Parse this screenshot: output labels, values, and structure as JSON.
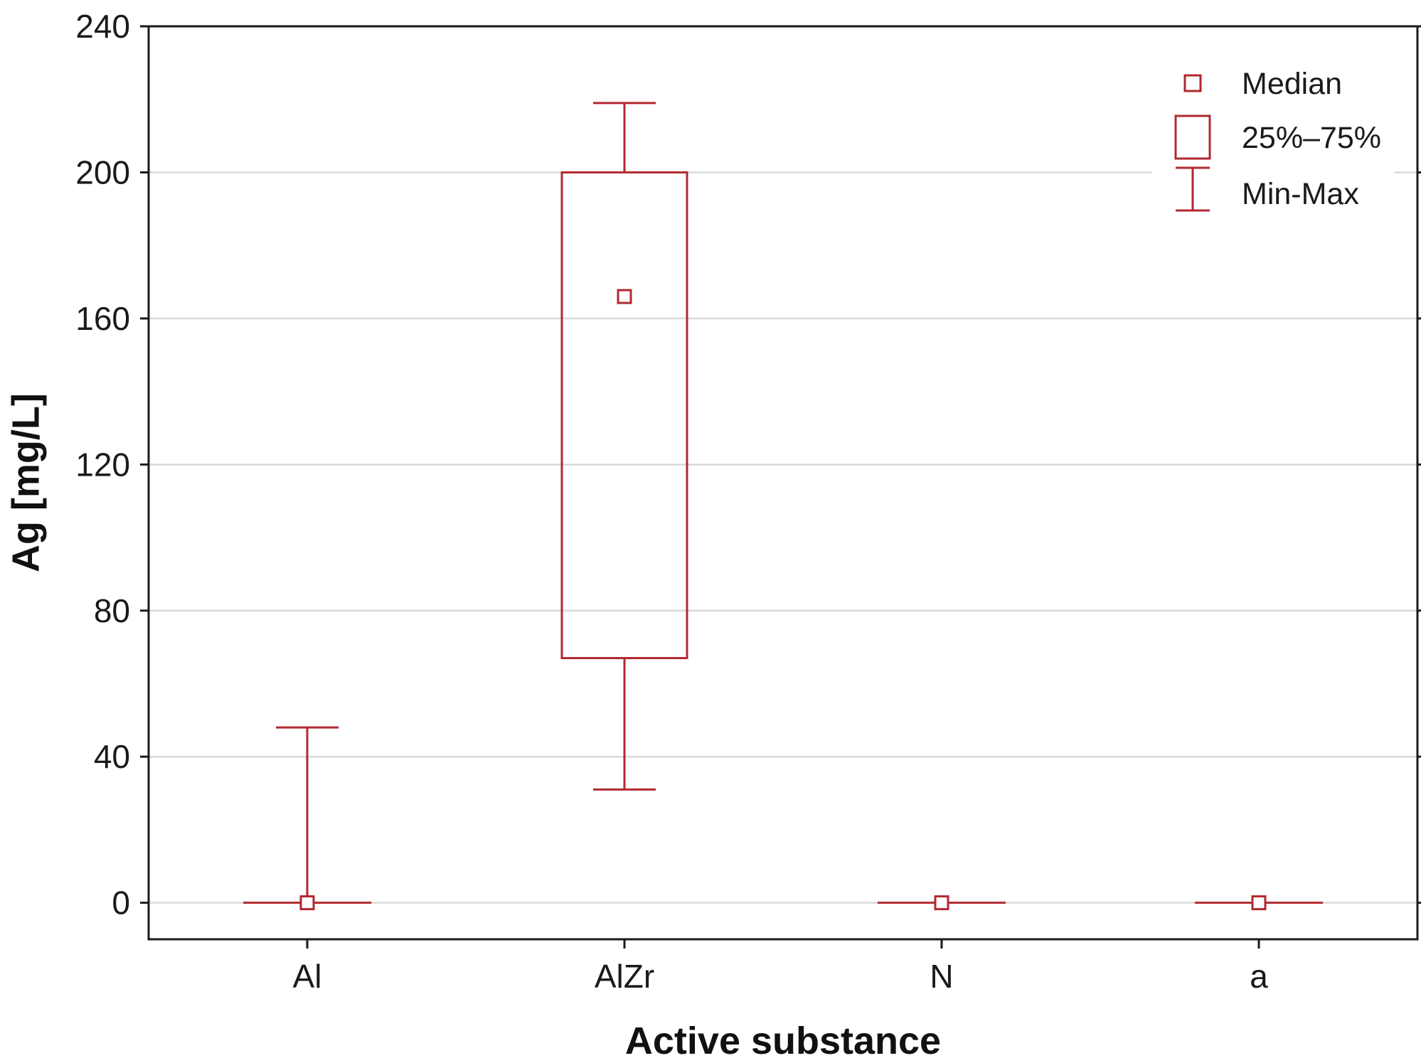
{
  "chart_data": {
    "type": "box",
    "xlabel": "Active substance",
    "ylabel": "Ag [mg/L]",
    "ylim": [
      -10,
      240
    ],
    "yticks": [
      0,
      40,
      80,
      120,
      160,
      200,
      240
    ],
    "grid": true,
    "categories": [
      "Al",
      "AlZr",
      "N",
      "a"
    ],
    "series": [
      {
        "category": "Al",
        "min": 0,
        "q1": 0,
        "median": 0,
        "q3": 0,
        "max": 48
      },
      {
        "category": "AlZr",
        "min": 31,
        "q1": 67,
        "median": 166,
        "q3": 200,
        "max": 219
      },
      {
        "category": "N",
        "min": 0,
        "q1": 0,
        "median": 0,
        "q3": 0,
        "max": 0
      },
      {
        "category": "a",
        "min": 0,
        "q1": 0,
        "median": 0,
        "q3": 0,
        "max": 0
      }
    ],
    "legend": {
      "position": "top-right",
      "items": [
        {
          "symbol": "median",
          "label": "Median"
        },
        {
          "symbol": "box",
          "label": "25%–75%"
        },
        {
          "symbol": "whisker",
          "label": "Min-Max"
        }
      ]
    },
    "color": "#b22830",
    "grid_color": "#d9d9d9"
  }
}
